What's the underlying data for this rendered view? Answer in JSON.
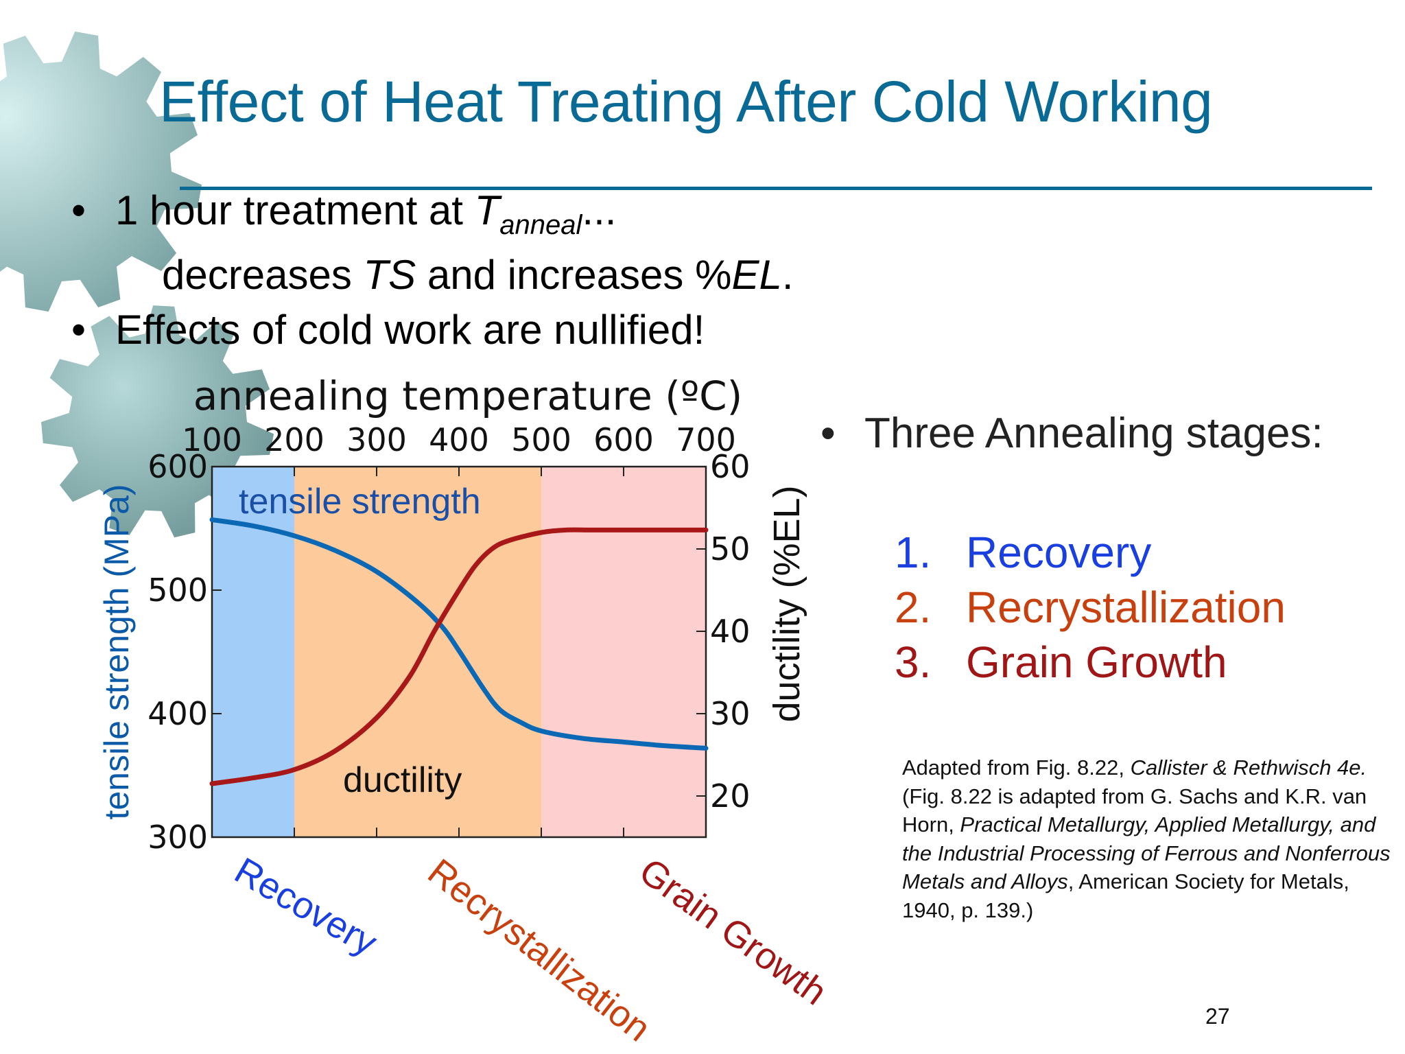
{
  "slide": {
    "title": "Effect of Heat Treating After Cold Working",
    "bullet1_pre": "1 hour treatment at ",
    "bullet1_var": "T",
    "bullet1_sub": "anneal",
    "bullet1_post": "...",
    "bullet1_line2_a": "decreases ",
    "bullet1_line2_ts": "TS",
    "bullet1_line2_b": " and increases %",
    "bullet1_line2_el": "EL",
    "bullet1_line2_c": ".",
    "bullet2": "Effects of cold work are nullified!",
    "bullet_symbol": "•",
    "stages_heading": "Three Annealing stages:",
    "stages": [
      {
        "num": "1.",
        "label": "Recovery",
        "color": "#1a3fe0"
      },
      {
        "num": "2.",
        "label": "Recrystallization",
        "color": "#c8400e"
      },
      {
        "num": "3.",
        "label": "Grain Growth",
        "color": "#a01616"
      }
    ],
    "caption_p1": "Adapted from Fig. 8.22, ",
    "caption_p2": "Callister & Rethwisch 4e.",
    "caption_p3": " (Fig. 8.22 is adapted from G. Sachs and K.R. van Horn, ",
    "caption_p4": "Practical Metallurgy, Applied Metallurgy, and the Industrial Processing of Ferrous and Nonferrous Metals and Alloys",
    "caption_p5": ", American Society for Metals, 1940, p. 139.)",
    "page_number": "27",
    "colors": {
      "title": "#0a6a96",
      "gear": "#7fb5b5"
    }
  },
  "chart_data": {
    "type": "line",
    "title": "annealing temperature (ºC)",
    "xlabel": "annealing temperature (ºC)",
    "ylabel": "tensile strength (MPa)",
    "y2label": "ductility (%EL)",
    "xlim": [
      100,
      700
    ],
    "ylim": [
      300,
      600
    ],
    "y2lim": [
      15,
      60
    ],
    "x_ticks": [
      "100",
      "200",
      "300",
      "400",
      "500",
      "600",
      "700"
    ],
    "y_ticks": [
      "300",
      "400",
      "500",
      "600"
    ],
    "y2_ticks": [
      "20",
      "30",
      "40",
      "50",
      "60"
    ],
    "regions": [
      {
        "label": "Recovery",
        "x0": 100,
        "x1": 200,
        "color": "#a2cdf8",
        "label_color": "#1a3fe0"
      },
      {
        "label": "Recrystallization",
        "x0": 200,
        "x1": 500,
        "color": "#fdcb9b",
        "label_color": "#c8400e"
      },
      {
        "label": "Grain Growth",
        "x0": 500,
        "x1": 700,
        "color": "#fecfcf",
        "label_color": "#a01616"
      }
    ],
    "series": [
      {
        "name": "tensile strength",
        "axis": "y",
        "color": "#0b68b4",
        "x": [
          100,
          150,
          200,
          250,
          300,
          350,
          380,
          400,
          430,
          450,
          475,
          500,
          550,
          600,
          650,
          700
        ],
        "y": [
          557,
          552,
          544,
          532,
          515,
          490,
          470,
          451,
          420,
          403,
          393,
          386,
          380,
          377,
          374,
          372
        ]
      },
      {
        "name": "ductility",
        "axis": "y2",
        "color": "#a81818",
        "x": [
          100,
          150,
          200,
          250,
          300,
          340,
          370,
          400,
          420,
          440,
          460,
          500,
          530,
          560,
          600,
          650,
          700
        ],
        "y": [
          21.5,
          22.2,
          23.2,
          25.5,
          29.5,
          34.5,
          40.0,
          45.0,
          48.0,
          50.0,
          51.0,
          52.0,
          52.3,
          52.3,
          52.3,
          52.3,
          52.3
        ]
      }
    ],
    "grid": false,
    "legend": "inline labels"
  }
}
